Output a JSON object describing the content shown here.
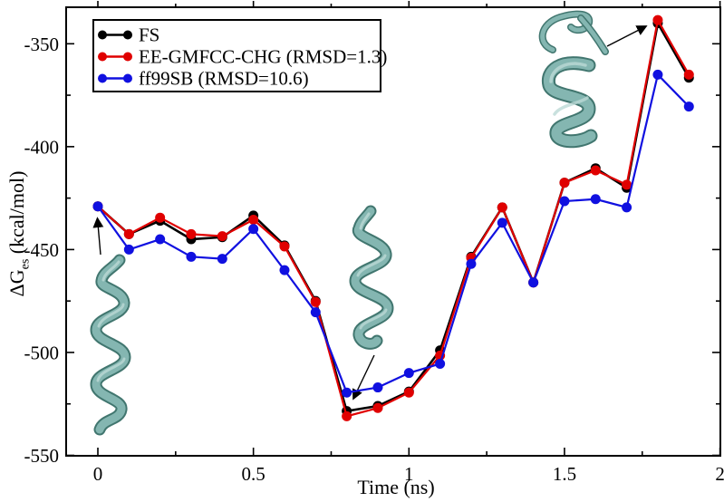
{
  "chart_data": {
    "type": "line",
    "title": "",
    "xlabel": "Time (ns)",
    "ylabel": "ΔG_es (kcal/mol)",
    "ylabel_parts": {
      "main": "ΔG",
      "sub": "es",
      "units": "(kcal/mol)"
    },
    "x": [
      0,
      0.1,
      0.2,
      0.3,
      0.4,
      0.5,
      0.6,
      0.7,
      0.8,
      0.9,
      1.0,
      1.1,
      1.2,
      1.3,
      1.4,
      1.5,
      1.6,
      1.7,
      1.8,
      1.9
    ],
    "series": [
      {
        "name": "FS",
        "color": "#000000",
        "values": [
          -429,
          -442.5,
          -436,
          -445,
          -444,
          -433.5,
          -448,
          -475,
          -528.5,
          -526,
          -519,
          -499,
          -453.5,
          -429.5,
          -466,
          -417.5,
          -410.5,
          -420,
          -340,
          -366.5
        ]
      },
      {
        "name": "EE-GMFCC-CHG (RMSD=1.3)",
        "color": "#e00000",
        "values": [
          -429,
          -442.5,
          -434.5,
          -442.5,
          -443.5,
          -435.5,
          -448.5,
          -475.5,
          -531,
          -527,
          -519.5,
          -501.5,
          -454,
          -429.5,
          -466,
          -417.5,
          -411.5,
          -418.5,
          -338.5,
          -365
        ]
      },
      {
        "name": "ff99SB (RMSD=10.6)",
        "color": "#1010e0",
        "values": [
          -429,
          -450,
          -445,
          -453.5,
          -454.5,
          -440,
          -460,
          -480.5,
          -519.5,
          -517,
          -510,
          -505.5,
          -457,
          -437,
          -466,
          -426.5,
          -425.5,
          -429.5,
          -365,
          -380.5
        ]
      }
    ],
    "axes": {
      "xlim": [
        -0.1,
        2.0
      ],
      "ylim": [
        -550,
        -330
      ],
      "x_major_ticks": [
        {
          "v": 0,
          "label": "0"
        },
        {
          "v": 0.5,
          "label": "0.5"
        },
        {
          "v": 1,
          "label": "1"
        },
        {
          "v": 1.5,
          "label": "1.5"
        },
        {
          "v": 2,
          "label": "2"
        }
      ],
      "x_minor_ticks": [
        0.25,
        0.75,
        1.25,
        1.75
      ],
      "y_major_ticks": [
        {
          "v": -350,
          "label": "-350"
        },
        {
          "v": -400,
          "label": "-400"
        },
        {
          "v": -450,
          "label": "-450"
        },
        {
          "v": -500,
          "label": "-500"
        },
        {
          "v": -550,
          "label": "-550"
        }
      ],
      "y_minor_ticks": [
        -375,
        -425,
        -475,
        -525
      ],
      "grid": false
    },
    "legend": {
      "position": "upper-left"
    },
    "annotation_icons": [
      {
        "icon": "protein-helix-structure-left-icon"
      },
      {
        "icon": "protein-helix-structure-middle-icon"
      },
      {
        "icon": "protein-structure-top-right-icon"
      }
    ],
    "structure_colors": {
      "face": "#84b6b1",
      "edge": "#41766f",
      "highlight": "#bcdad6"
    }
  }
}
